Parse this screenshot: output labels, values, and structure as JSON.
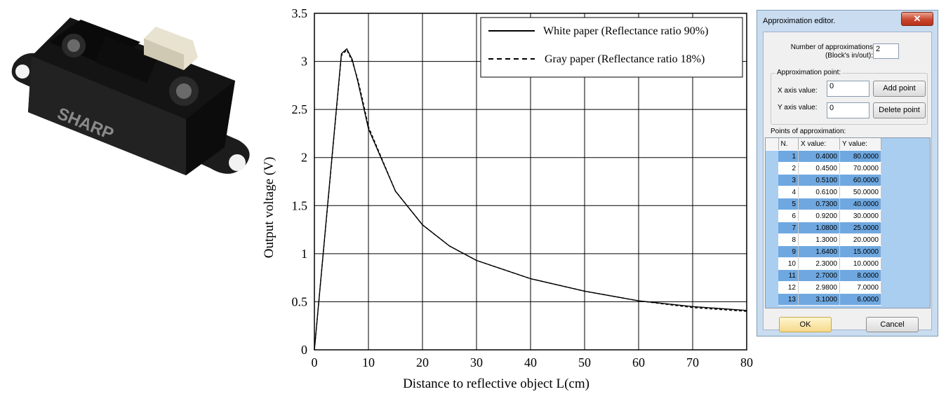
{
  "photo": {
    "brand_text": "SHARP"
  },
  "chart_data": {
    "type": "line",
    "xlabel": "Distance to reflective object L(cm)",
    "ylabel": "Output voltage (V)",
    "xlim": [
      0,
      80
    ],
    "ylim": [
      0,
      3.5
    ],
    "xticks": [
      "0",
      "10",
      "20",
      "30",
      "40",
      "50",
      "60",
      "70",
      "80"
    ],
    "yticks": [
      "0",
      "0.5",
      "1",
      "1.5",
      "2",
      "2.5",
      "3",
      "3.5"
    ],
    "grid": true,
    "legend_position": "top-right",
    "series": [
      {
        "name": "White paper (Reflectance ratio 90%)",
        "style": "solid",
        "x": [
          0,
          5,
          6,
          7,
          8,
          9,
          10,
          15,
          20,
          25,
          30,
          40,
          50,
          60,
          70,
          80
        ],
        "y": [
          0,
          3.08,
          3.13,
          3.02,
          2.8,
          2.55,
          2.3,
          1.65,
          1.3,
          1.08,
          0.93,
          0.74,
          0.61,
          0.51,
          0.45,
          0.41
        ]
      },
      {
        "name": "Gray paper (Reflectance ratio 18%)",
        "style": "dashed",
        "x": [
          0,
          5,
          6,
          7,
          8,
          9,
          10,
          15,
          20,
          25,
          30,
          40,
          50,
          60,
          70,
          80
        ],
        "y": [
          0,
          3.06,
          3.12,
          3.0,
          2.82,
          2.58,
          2.32,
          1.65,
          1.3,
          1.08,
          0.93,
          0.74,
          0.61,
          0.51,
          0.44,
          0.4
        ]
      }
    ]
  },
  "dialog": {
    "title": "Approximation editor.",
    "close_symbol": "✕",
    "num_label_line1": "Number of approximations",
    "num_label_line2": "(Block's in/out):",
    "num_value": "2",
    "group_title": "Approximation point:",
    "x_label": "X axis value:",
    "x_value": "0",
    "y_label": "Y axis value:",
    "y_value": "0",
    "add_button": "Add point",
    "delete_button": "Delete point",
    "points_label": "Points of approximation:",
    "columns": [
      "N.",
      "X value:",
      "Y value:"
    ],
    "rows": [
      [
        "1",
        "0.4000",
        "80.0000"
      ],
      [
        "2",
        "0.4500",
        "70.0000"
      ],
      [
        "3",
        "0.5100",
        "60.0000"
      ],
      [
        "4",
        "0.6100",
        "50.0000"
      ],
      [
        "5",
        "0.7300",
        "40.0000"
      ],
      [
        "6",
        "0.9200",
        "30.0000"
      ],
      [
        "7",
        "1.0800",
        "25.0000"
      ],
      [
        "8",
        "1.3000",
        "20.0000"
      ],
      [
        "9",
        "1.6400",
        "15.0000"
      ],
      [
        "10",
        "2.3000",
        "10.0000"
      ],
      [
        "11",
        "2.7000",
        "8.0000"
      ],
      [
        "12",
        "2.9800",
        "7.0000"
      ],
      [
        "13",
        "3.1000",
        "6.0000"
      ]
    ],
    "ok_button": "OK",
    "cancel_button": "Cancel"
  }
}
